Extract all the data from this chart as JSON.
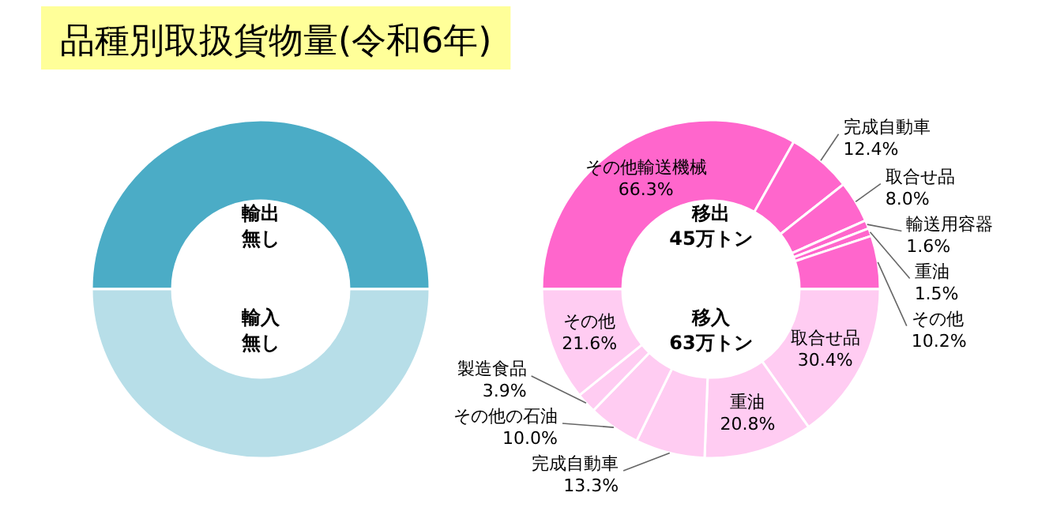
{
  "chart_data": [
    {
      "type": "donut",
      "title": "品種別取扱貨物量(令和6年)",
      "categories": [
        null,
        null
      ],
      "values": [
        50,
        50
      ],
      "colors": [
        "#4bacc6",
        "#b7dee8"
      ],
      "annotations": [
        "輸出",
        "無し",
        "輸入",
        "無し"
      ]
    },
    {
      "type": "donut",
      "categories": [
        "その他輸送機械",
        "完成自動車",
        "取合せ品",
        "輸送用容器",
        "重油",
        "その他",
        "取合せ品",
        "重油",
        "完成自動車",
        "その他の石油",
        "製造食品",
        "その他"
      ],
      "values": [
        66.3,
        12.4,
        8.0,
        1.6,
        1.5,
        10.2,
        30.4,
        20.8,
        13.3,
        10.0,
        3.9,
        21.6
      ],
      "value_labels": [
        "66.3%",
        "12.4%",
        "8.0%",
        "1.6%",
        "1.5%",
        "10.2%",
        "30.4%",
        "20.8%",
        "13.3%",
        "10.0%",
        "3.9%",
        "21.6%"
      ],
      "colors": [
        "#ff66cc",
        "#ff66cc",
        "#ff66cc",
        "#ff66cc",
        "#ff66cc",
        "#ff66cc",
        "#ffccf2",
        "#ffccf2",
        "#ffccf2",
        "#ffccf2",
        "#ffccf2",
        "#ffccf2"
      ],
      "annotations": [
        "移出",
        "45万トン",
        "移入",
        "63万トン"
      ]
    }
  ]
}
